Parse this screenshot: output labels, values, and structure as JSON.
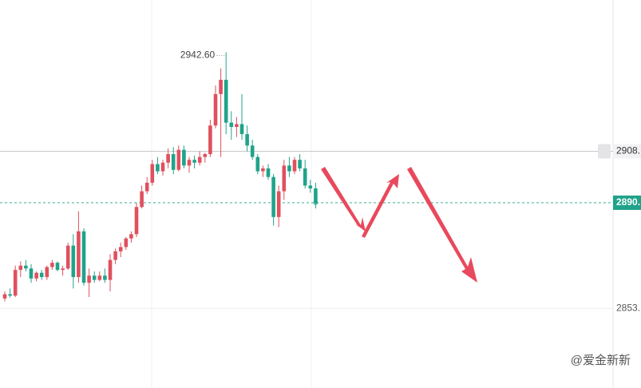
{
  "chart_data": {
    "type": "candlestick",
    "up_color": "#e0505e",
    "down_color": "#1fa38a",
    "open": [
      2856.5,
      2858,
      2857.5,
      2866.5,
      2868,
      2867,
      2863.5,
      2865.5,
      2864,
      2867.5,
      2869,
      2866.5,
      2867,
      2875,
      2864,
      2880,
      2862,
      2864.5,
      2863,
      2864.5,
      2863,
      2870,
      2873,
      2874.5,
      2877.5,
      2879,
      2888.5,
      2894,
      2897,
      2903.5,
      2901,
      2904,
      2907,
      2901.5,
      2908.5,
      2903,
      2905,
      2904,
      2906,
      2907,
      2917,
      2928,
      2933,
      2918,
      2916.5,
      2917.5,
      2914,
      2910,
      2906,
      2901,
      2902,
      2899,
      2885,
      2894,
      2903,
      2901,
      2905,
      2902,
      2896,
      2895
    ],
    "high": [
      2859,
      2860,
      2868,
      2869.5,
      2870,
      2868.5,
      2866,
      2866.5,
      2868,
      2870,
      2869.5,
      2868,
      2876,
      2879,
      2887,
      2881,
      2867,
      2866,
      2866,
      2867,
      2872,
      2874,
      2876,
      2878,
      2880,
      2890,
      2896,
      2899,
      2905,
      2906,
      2905,
      2909,
      2909.5,
      2910,
      2910,
      2906,
      2906.5,
      2908,
      2907.5,
      2919,
      2931,
      2937,
      2942.6,
      2922,
      2920,
      2928,
      2917,
      2912,
      2907,
      2903,
      2903.5,
      2900,
      2896,
      2905,
      2906,
      2906,
      2907,
      2905,
      2898,
      2897
    ],
    "low": [
      2855.5,
      2856.8,
      2857,
      2864,
      2866,
      2862,
      2862.5,
      2863,
      2863,
      2866.5,
      2866,
      2864.5,
      2866.5,
      2860,
      2862,
      2861,
      2857,
      2862,
      2862.5,
      2862,
      2859,
      2868.5,
      2871,
      2873.5,
      2876,
      2878,
      2888,
      2893,
      2896,
      2900,
      2899.5,
      2902,
      2900,
      2901,
      2902,
      2900.5,
      2902,
      2903,
      2904,
      2906,
      2916,
      2906,
      2914,
      2912,
      2913,
      2912,
      2908,
      2905,
      2900,
      2899,
      2898,
      2882,
      2881.5,
      2891,
      2899,
      2900,
      2901,
      2895,
      2893.5,
      2888
    ],
    "close": [
      2858,
      2857.5,
      2866.5,
      2868,
      2867,
      2863.5,
      2865.5,
      2864,
      2867.5,
      2869,
      2866.5,
      2867,
      2875,
      2864,
      2880,
      2862,
      2864.5,
      2863,
      2864.5,
      2863,
      2870,
      2873,
      2874.5,
      2877.5,
      2879,
      2888.5,
      2894,
      2897,
      2903.5,
      2901,
      2904,
      2907,
      2901.5,
      2908.5,
      2903,
      2905,
      2904,
      2906,
      2907,
      2917,
      2928,
      2933,
      2918,
      2916.5,
      2917.5,
      2914,
      2910,
      2906,
      2901,
      2902,
      2899,
      2885,
      2894,
      2903,
      2901,
      2905,
      2902,
      2896,
      2895,
      2890
    ],
    "ylim": [
      2825.2,
      2960.9
    ],
    "yticks": [
      {
        "value": 2853,
        "label": "2853."
      }
    ],
    "high_annotation": {
      "value": 2942.6,
      "label": "2942.60"
    },
    "alert_line": {
      "value": 2908,
      "label": "2908."
    },
    "current_price": {
      "value": 2890,
      "label": "2890."
    },
    "watermark": "@爱金新新"
  }
}
